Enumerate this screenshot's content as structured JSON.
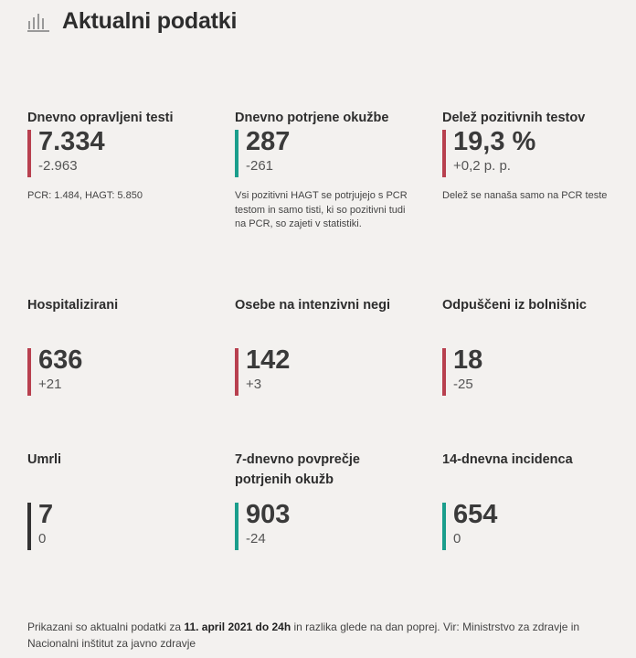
{
  "header": {
    "title": "Aktualni podatki",
    "icon": "bar-chart-icon"
  },
  "colors": {
    "red": "#b8404f",
    "teal": "#1a9e8c",
    "dark": "#333333"
  },
  "cards": [
    {
      "title": "Dnevno opravljeni testi",
      "value": "7.334",
      "delta": "-2.963",
      "note": "PCR: 1.484, HAGT: 5.850",
      "bar": "red"
    },
    {
      "title": "Dnevno potrjene okužbe",
      "value": "287",
      "delta": "-261",
      "note": "Vsi pozitivni HAGT se potrjujejo s PCR testom in samo tisti, ki so pozitivni tudi na PCR, so zajeti v statistiki.",
      "bar": "teal"
    },
    {
      "title": "Delež pozitivnih testov",
      "value": "19,3 %",
      "delta": "+0,2 p. p.",
      "note": "Delež se nanaša samo na PCR teste",
      "bar": "red"
    },
    {
      "title": "Hospitalizirani",
      "value": "636",
      "delta": "+21",
      "bar": "red"
    },
    {
      "title": "Osebe na intenzivni negi",
      "value": "142",
      "delta": "+3",
      "bar": "red"
    },
    {
      "title": "Odpuščeni iz bolnišnic",
      "value": "18",
      "delta": "-25",
      "bar": "red"
    },
    {
      "title": "Umrli",
      "value": "7",
      "delta": "0",
      "bar": "dark"
    },
    {
      "title": "7-dnevno povprečje potrjenih okužb",
      "value": "903",
      "delta": "-24",
      "bar": "teal"
    },
    {
      "title": "14-dnevna incidenca",
      "value": "654",
      "delta": "0",
      "bar": "teal"
    }
  ],
  "footer": {
    "text_before": "Prikazani so aktualni podatki za ",
    "date": "11. april 2021 do 24h",
    "text_after": " in razlika glede na dan poprej. Vir: Ministrstvo za zdravje in Nacionalni inštitut za javno zdravje"
  }
}
